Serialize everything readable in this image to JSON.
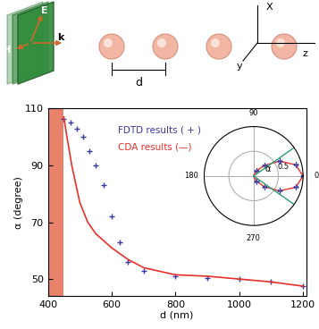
{
  "diagram": {
    "field_labels": {
      "E": "E",
      "H": "H",
      "k": "k"
    },
    "spacing": "d",
    "axes": [
      "X",
      "y",
      "z"
    ]
  },
  "chart_data": [
    {
      "type": "line",
      "xlabel": "d (nm)",
      "ylabel": "α (degree)",
      "xlim": [
        400,
        1210
      ],
      "ylim": [
        44,
        110
      ],
      "xticks": [
        400,
        600,
        800,
        1000,
        1200
      ],
      "yticks": [
        50,
        70,
        90,
        110
      ],
      "grid": false,
      "shaded_region": [
        400,
        450
      ],
      "shaded_color": "#e8826a",
      "series": [
        {
          "name": "FDTD results ( + )",
          "type": "scatter",
          "marker": "+",
          "color": "#3a3aa0",
          "x": [
            450,
            470,
            490,
            510,
            530,
            550,
            575,
            600,
            625,
            650,
            700,
            800,
            900,
            1000,
            1100,
            1200
          ],
          "values": [
            106.5,
            105,
            103,
            100,
            95,
            90,
            83,
            72,
            63,
            56,
            53,
            51,
            50.5,
            50,
            49,
            47.5
          ]
        },
        {
          "name": "CDA results (—)",
          "type": "line",
          "line_style": "solid",
          "color": "#e8302a",
          "x": [
            450,
            460,
            475,
            500,
            525,
            550,
            600,
            650,
            700,
            800,
            900,
            1000,
            1100,
            1200
          ],
          "values": [
            107,
            100,
            90,
            77,
            70,
            66,
            61,
            57,
            54,
            51.5,
            51,
            50,
            49,
            47.5
          ]
        }
      ]
    },
    {
      "type": "polar",
      "xticks": [
        0,
        90,
        180,
        270
      ],
      "ylim": [
        0,
        1
      ],
      "yticks": [
        0.5
      ],
      "angle_lines": [
        35,
        -35
      ],
      "angle_line_color": "#2e9e6e",
      "annotation": "α",
      "series": [
        {
          "name": "CDA",
          "type": "line",
          "line_style": "solid",
          "color": "#e8302a",
          "x": [
            -90,
            -75,
            -60,
            -45,
            -30,
            -15,
            0,
            15,
            30,
            45,
            60,
            75,
            90
          ],
          "values": [
            0,
            0.03,
            0.12,
            0.3,
            0.6,
            0.88,
            1,
            0.88,
            0.6,
            0.3,
            0.12,
            0.03,
            0
          ]
        },
        {
          "name": "FDTD",
          "type": "scatter",
          "marker": "+",
          "color": "#3a3aa0",
          "x": [
            -60,
            -45,
            -30,
            -15,
            0,
            15,
            30,
            45,
            60
          ],
          "values": [
            0.12,
            0.3,
            0.6,
            0.88,
            1,
            0.88,
            0.6,
            0.3,
            0.12
          ]
        }
      ]
    }
  ]
}
